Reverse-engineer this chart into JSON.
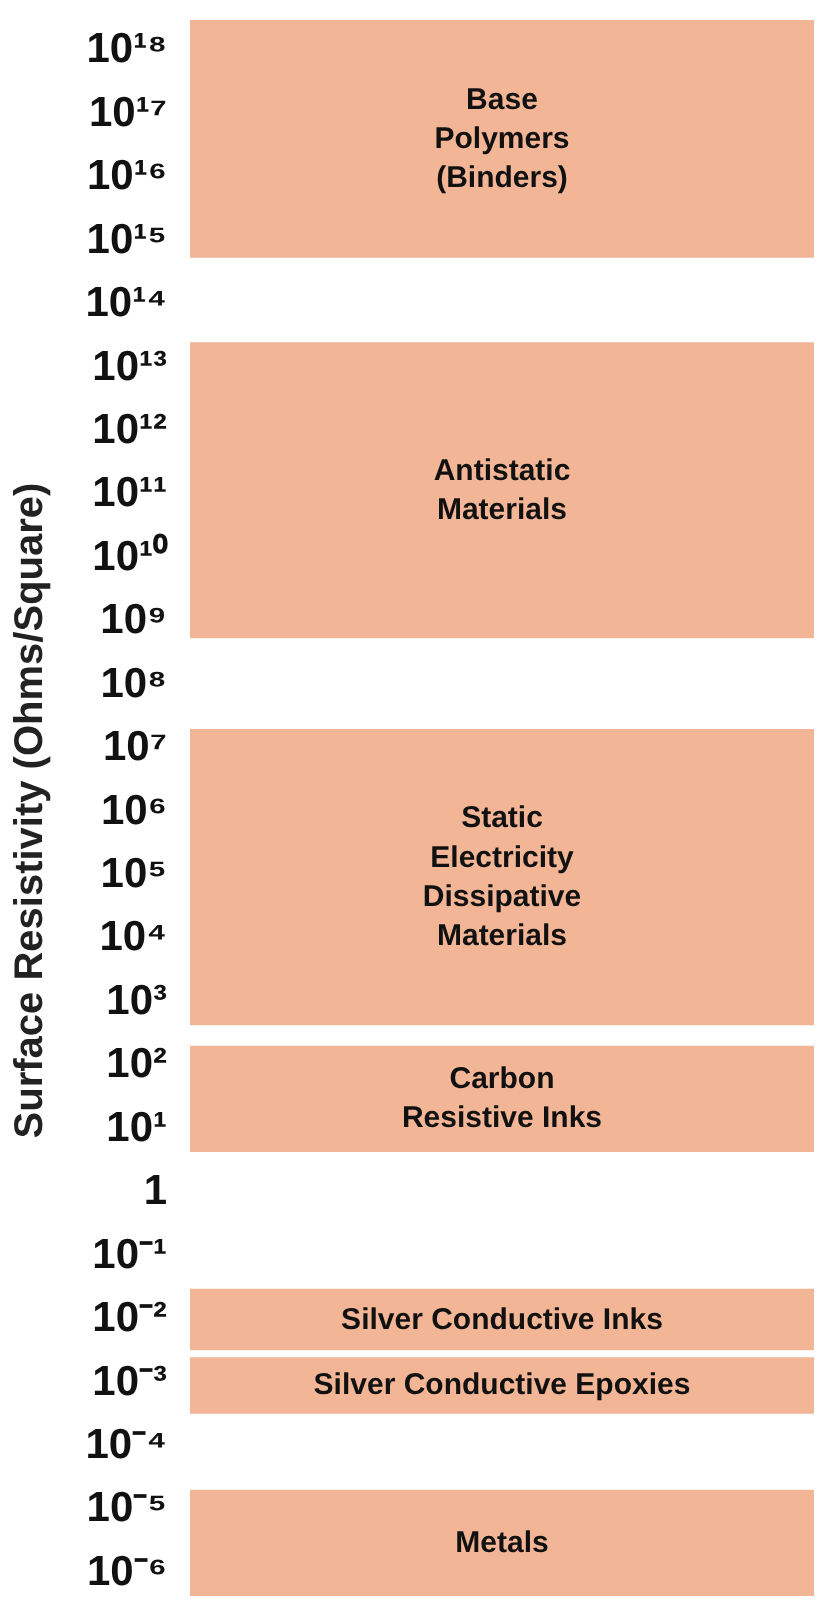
{
  "chart_data": {
    "type": "bar",
    "ylabel": "Surface Resistivity  (Ohms/Square)",
    "log": "y",
    "ylim": [
      3e-07,
      5e+18
    ],
    "categories": [
      null
    ],
    "yticks": [
      {
        "value": 1e+18,
        "label": "10¹⁸"
      },
      {
        "value": 1e+17,
        "label": "10¹⁷"
      },
      {
        "value": 1e+16,
        "label": "10¹⁶"
      },
      {
        "value": 1000000000000000.0,
        "label": "10¹⁵"
      },
      {
        "value": 100000000000000.0,
        "label": "10¹⁴"
      },
      {
        "value": 10000000000000.0,
        "label": "10¹³"
      },
      {
        "value": 1000000000000.0,
        "label": "10¹²"
      },
      {
        "value": 100000000000.0,
        "label": "10¹¹"
      },
      {
        "value": 10000000000.0,
        "label": "10¹⁰"
      },
      {
        "value": 1000000000.0,
        "label": "10⁹"
      },
      {
        "value": 100000000.0,
        "label": "10⁸"
      },
      {
        "value": 10000000.0,
        "label": "10⁷"
      },
      {
        "value": 1000000.0,
        "label": "10⁶"
      },
      {
        "value": 100000.0,
        "label": "10⁵"
      },
      {
        "value": 10000.0,
        "label": "10⁴"
      },
      {
        "value": 1000.0,
        "label": "10³"
      },
      {
        "value": 100.0,
        "label": "10²"
      },
      {
        "value": 10.0,
        "label": "10¹"
      },
      {
        "value": 1,
        "label": "1"
      },
      {
        "value": 0.1,
        "label": "10⁻¹"
      },
      {
        "value": 0.01,
        "label": "10⁻²"
      },
      {
        "value": 0.001,
        "label": "10⁻³"
      },
      {
        "value": 0.0001,
        "label": "10⁻⁴"
      },
      {
        "value": 1e-05,
        "label": "10⁻⁵"
      },
      {
        "value": 1e-06,
        "label": "10⁻⁶"
      }
    ],
    "series": [
      {
        "name": "Base\nPolymers\n(Binders)",
        "color": "#f2b595",
        "base": [
          500000000000000.0
        ],
        "values": [
          3e+18
        ]
      },
      {
        "name": "Antistatic\nMaterials",
        "color": "#f2b595",
        "base": [
          500000000.0
        ],
        "values": [
          25000000000000.0
        ]
      },
      {
        "name": "Static\nElectricity\nDissipative\nMaterials",
        "color": "#f2b595",
        "base": [
          400
        ],
        "values": [
          20000000.0
        ]
      },
      {
        "name": "Carbon\nResistive Inks",
        "color": "#f2b595",
        "base": [
          4
        ],
        "values": [
          200
        ]
      },
      {
        "name": "Silver Conductive Inks",
        "color": "#f2b595",
        "base": [
          0.003
        ],
        "values": [
          0.027
        ]
      },
      {
        "name": "Silver Conductive Epoxies",
        "color": "#f2b595",
        "base": [
          0.0003
        ],
        "values": [
          0.0022
        ]
      },
      {
        "name": "Metals",
        "color": "#f2b595",
        "base": [
          4e-07
        ],
        "values": [
          2e-05
        ]
      }
    ]
  }
}
